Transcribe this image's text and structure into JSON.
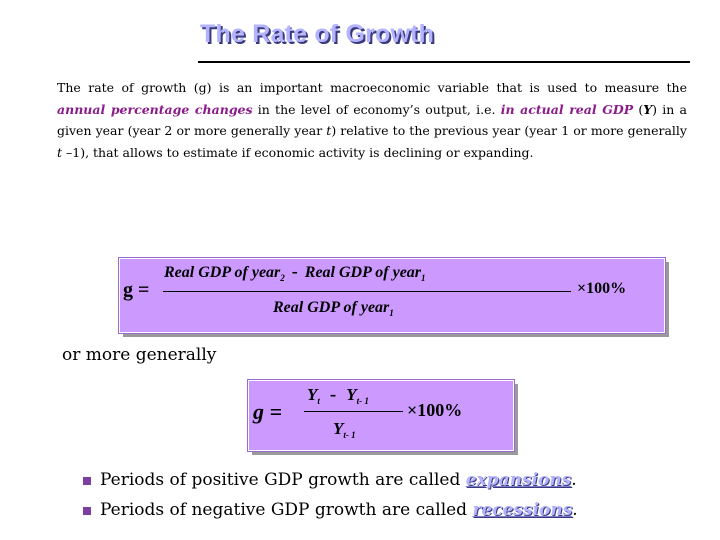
{
  "title": "The Rate of Growth",
  "paragraph": {
    "t1": "The rate of growth (g) is an important macroeconomic variable that is used to measure the ",
    "h1": "annual percentage changes",
    "t2": " in the level of economy’s output, i.e. ",
    "h2": "in actual real GDP",
    "t3": " (",
    "y": "Y",
    "t4": ") in a given year (year 2 or more generally year ",
    "t": "t",
    "t5": ") relative to the previous year (year 1 or more generally ",
    "t_minus": "t",
    "t6": " –1), that allows to estimate if economic activity is declining or expanding."
  },
  "formula1": {
    "lhs": "g =",
    "num_a": "Real GDP of  year",
    "num_a_sub": "2",
    "minus": "-",
    "num_b": "Real GDP of  year",
    "num_b_sub": "1",
    "den": "Real GDP of  year",
    "den_sub": "1",
    "times": "×100%"
  },
  "or_generally": "or more generally",
  "formula2": {
    "lhs": "g =",
    "num_a": "Y",
    "num_a_sub": "t",
    "minus": "-",
    "num_b": "Y",
    "num_b_sub": "t- 1",
    "den": "Y",
    "den_sub": "t- 1",
    "times": "×100%"
  },
  "bullets": [
    {
      "text": "Periods of positive GDP growth are called ",
      "keyword": "expansions",
      "end": "."
    },
    {
      "text": "Periods of negative GDP growth are called ",
      "keyword": "recessions",
      "end": "."
    }
  ],
  "colors": {
    "title": "#b3b3ff",
    "highlight": "#8b1a8b",
    "formula_box": "#cc99ff",
    "bullet": "#7a3fa0"
  }
}
